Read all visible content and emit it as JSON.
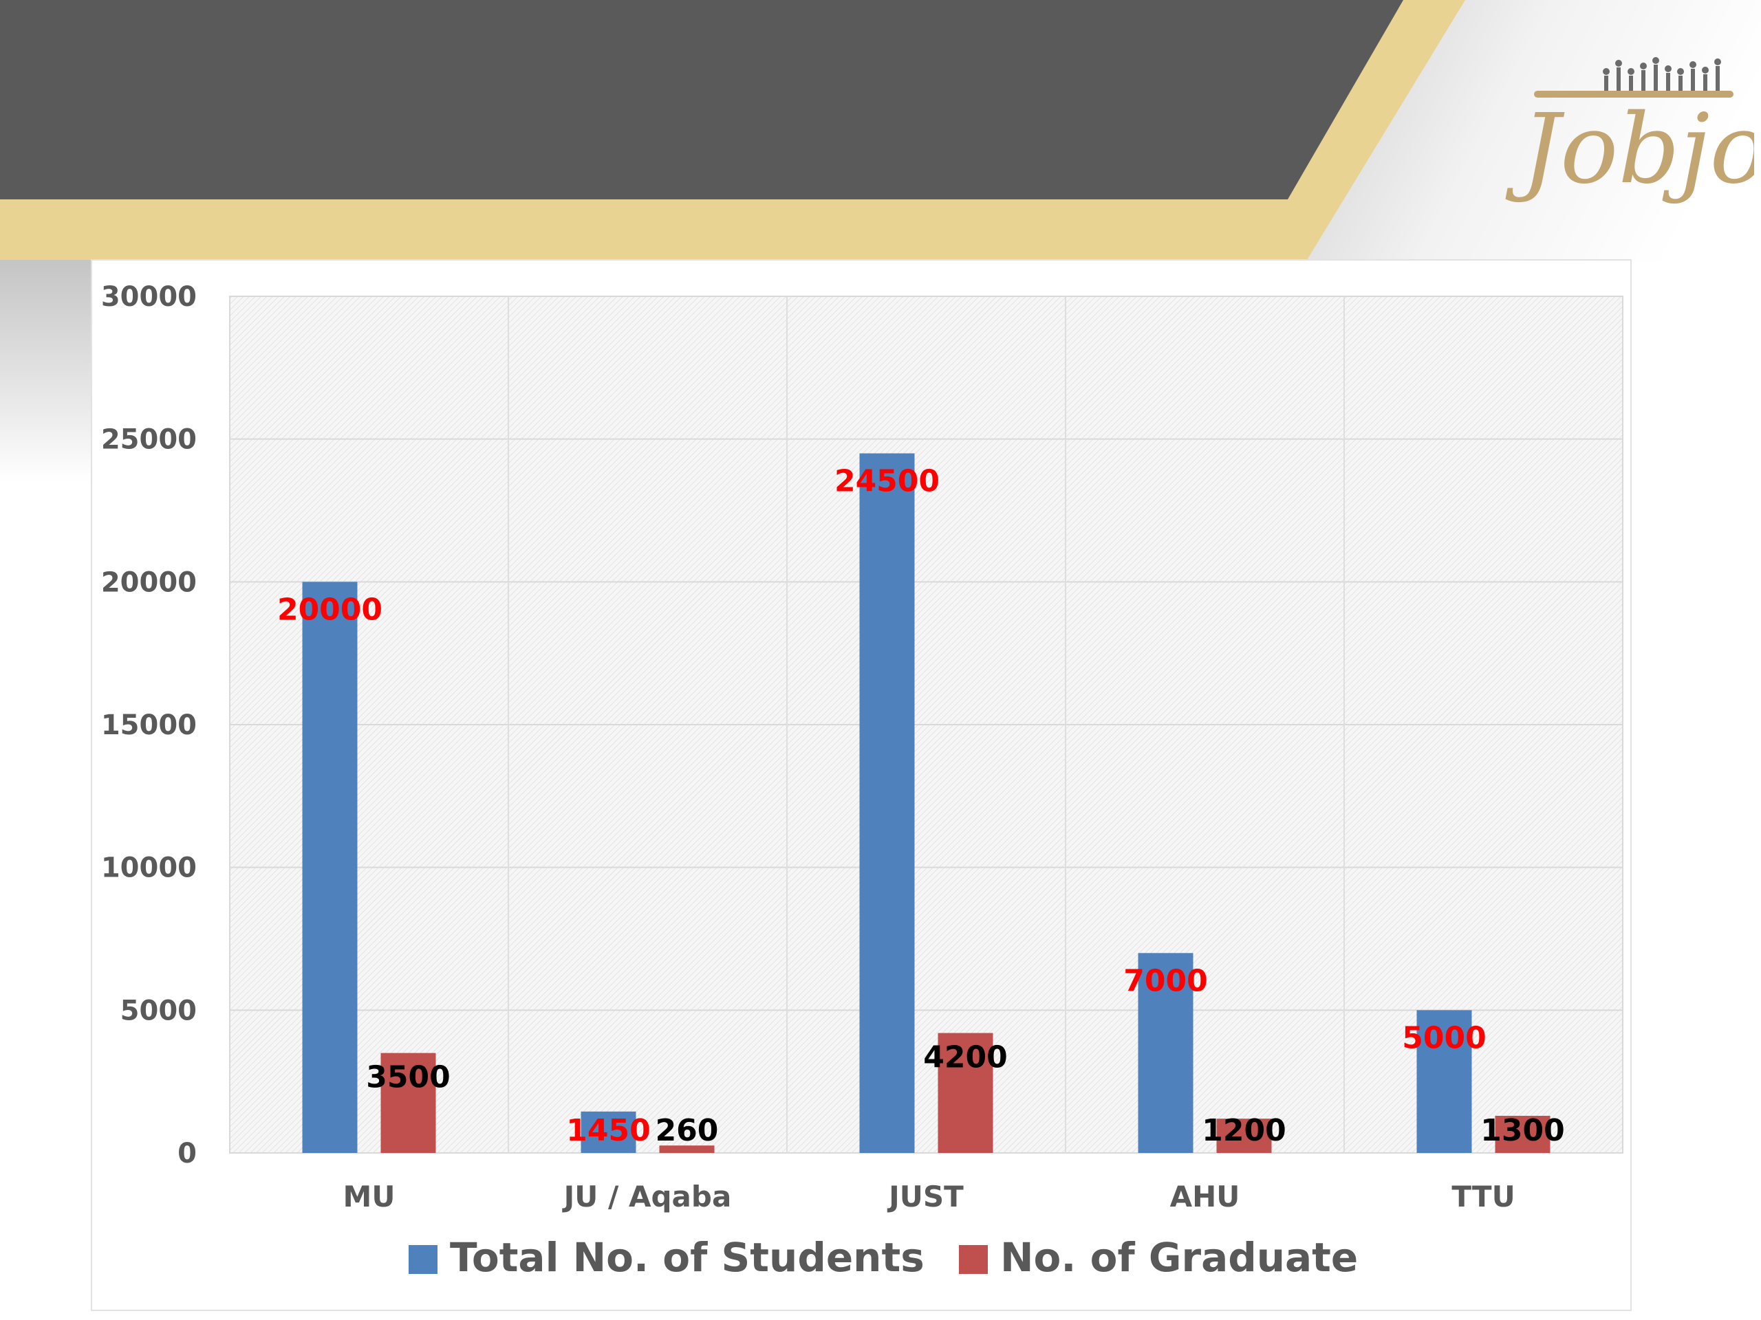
{
  "brand": {
    "logo_text": "Jobjo",
    "logo_color": "#c3a572",
    "accent_color": "#e8d393",
    "banner_color": "#5a5a5a"
  },
  "chart_data": {
    "type": "bar",
    "categories": [
      "MU",
      "JU / Aqaba",
      "JUST",
      "AHU",
      "TTU"
    ],
    "series": [
      {
        "name": "Total No. of Students",
        "values": [
          20000,
          1450,
          24500,
          7000,
          5000
        ],
        "color": "#4f81bd",
        "label_color": "#ff0000"
      },
      {
        "name": "No. of Graduate",
        "values": [
          3500,
          260,
          4200,
          1200,
          1300
        ],
        "color": "#c0504d",
        "label_color": "#000000"
      }
    ],
    "ylim": [
      0,
      30000
    ],
    "yticks": [
      "0",
      "5000",
      "10000",
      "15000",
      "20000",
      "25000",
      "30000"
    ],
    "grid": true,
    "legend_position": "bottom"
  }
}
